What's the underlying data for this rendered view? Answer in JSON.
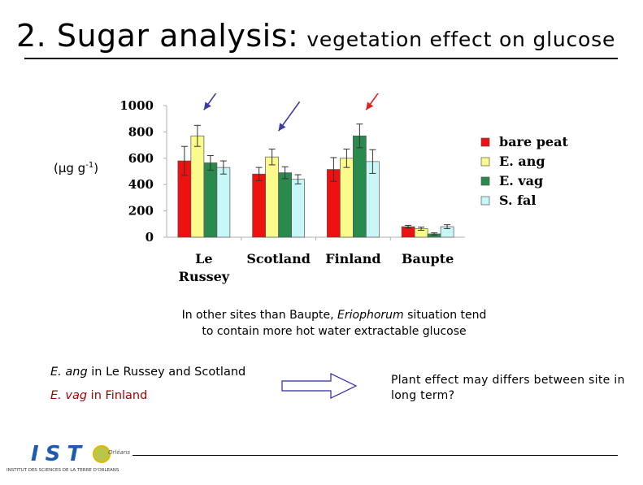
{
  "slide": {
    "title_main": "2. Sugar analysis:",
    "title_sub": "vegetation effect on glucose",
    "unit_text": "(µg g",
    "unit_sup": "-1",
    "unit_close": ")",
    "note_line1_before": "In other sites than Baupte, ",
    "note_line1_italic": "Eriophorum",
    "note_line1_after": " situation tend",
    "note_line2": "to contain more hot water extractable glucose",
    "finding1_species": "E. ang",
    "finding1_rest": " in Le Russey and Scotland",
    "finding2_species": "E. vag",
    "finding2_rest": " in Finland",
    "conclusion": "Plant effect may differs between site in long term?",
    "logo_letters": "IST",
    "logo_small": "Orléans",
    "logo_caption": "INSTITUT DES SCIENCES DE LA TERRE D'ORLÉANS"
  },
  "colors": {
    "bare_peat": "#ee1111",
    "e_ang": "#fbfb8c",
    "e_vag": "#2a8a4e",
    "s_fal": "#c8f7f7",
    "arrow_blue": "#3a3aa8",
    "arrow_red": "#e02020"
  },
  "chart_data": {
    "type": "bar",
    "title": "",
    "xlabel": "",
    "ylabel": "(µg g-1)",
    "ylim": [
      0,
      1000
    ],
    "yticks": [
      0,
      200,
      400,
      600,
      800,
      1000
    ],
    "categories": [
      "Le Russey",
      "Scotland",
      "Finland",
      "Baupte"
    ],
    "category_lines": [
      [
        "Le",
        "Russey"
      ],
      [
        "Scotland"
      ],
      [
        "Finland"
      ],
      [
        "Baupte"
      ]
    ],
    "legend_position": "right",
    "series": [
      {
        "name": "bare peat",
        "color_key": "bare_peat",
        "values": [
          580,
          480,
          515,
          80
        ],
        "errors": [
          110,
          50,
          90,
          10
        ]
      },
      {
        "name": "E. ang",
        "color_key": "e_ang",
        "values": [
          770,
          610,
          600,
          65
        ],
        "errors": [
          80,
          60,
          70,
          12
        ]
      },
      {
        "name": "E. vag",
        "color_key": "e_vag",
        "values": [
          565,
          490,
          770,
          25
        ],
        "errors": [
          55,
          45,
          90,
          8
        ]
      },
      {
        "name": "S. fal",
        "color_key": "s_fal",
        "values": [
          530,
          440,
          575,
          80
        ],
        "errors": [
          50,
          35,
          90,
          15
        ]
      }
    ],
    "highlight_arrows": [
      {
        "category": 0,
        "series": 1,
        "color_key": "arrow_blue"
      },
      {
        "category": 1,
        "series": 1,
        "color_key": "arrow_blue"
      },
      {
        "category": 2,
        "series": 2,
        "color_key": "arrow_red"
      }
    ]
  }
}
